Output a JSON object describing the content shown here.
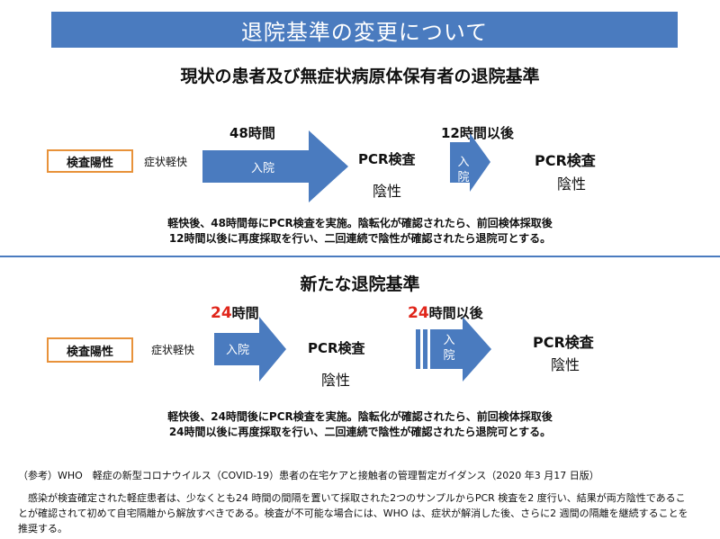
{
  "banner": {
    "title": "退院基準の変更について"
  },
  "current": {
    "heading": "現状の患者及び無症状病原体保有者の退院基準",
    "box_label": "検査陽性",
    "symptom_label": "症状軽快",
    "period1": "48時間",
    "arrow1_label": "入院",
    "test1_label": "PCR検査",
    "test1_result": "陰性",
    "period2": "12時間以後",
    "arrow2_label": [
      "入",
      "院"
    ],
    "test2_label": "PCR検査",
    "test2_result": "陰性",
    "note_line1": "軽快後、48時間毎にPCR検査を実施。陰転化が確認されたら、前回検体採取後",
    "note_line2": "12時間以後に再度採取を行い、二回連続で陰性が確認されたら退院可とする。"
  },
  "new": {
    "heading": "新たな退院基準",
    "box_label": "検査陽性",
    "symptom_label": "症状軽快",
    "period1_num": "24",
    "period1_unit": "時間",
    "arrow1_label": "入院",
    "test1_label": "PCR検査",
    "test1_result": "陰性",
    "period2_num": "24",
    "period2_unit": "時間以後",
    "arrow2_label": [
      "入",
      "院"
    ],
    "test2_label": "PCR検査",
    "test2_result": "陰性",
    "note_line1": "軽快後、24時間後にPCR検査を実施。陰転化が確認されたら、前回検体採取後",
    "note_line2": "24時間以後に再度採取を行い、二回連続で陰性が確認されたら退院可とする。"
  },
  "reference": {
    "title": "（参考）WHO　軽症の新型コロナウイルス（COVID-19）患者の在宅ケアと接触者の管理暫定ガイダンス（2020 年3 月17 日版）",
    "line1": "　感染が検査確定された軽症患者は、少なくとも24 時間の間隔を置いて採取された2つのサンプルからPCR 検査を2 度行い、結果が両方陰性であるこ",
    "line2": "とが確認されて初めて自宅隔離から解放すべきである。検査が不可能な場合には、WHO は、症状が解消した後、さらに2 週間の隔離を継続することを",
    "line3": "推奨する。"
  },
  "colors": {
    "banner": "#4a7bbf",
    "arrow": "#4a7bbf",
    "box_border": "#e8923a",
    "highlight": "#e0261b"
  }
}
